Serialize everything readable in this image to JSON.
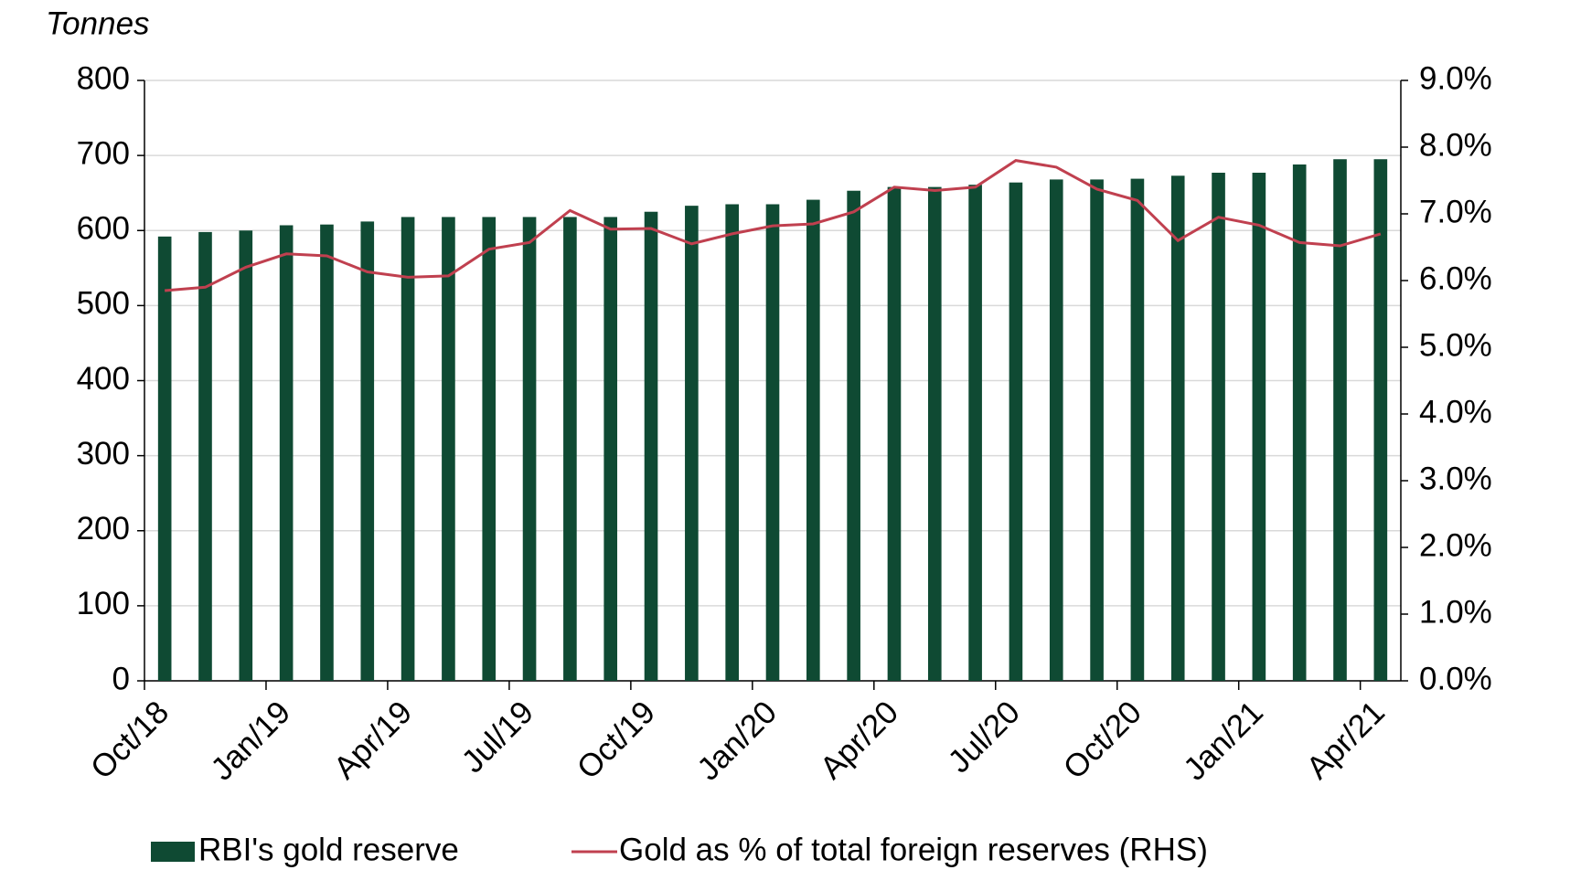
{
  "chart_data": {
    "type": "combo",
    "y_label": "Tonnes",
    "categories": [
      "Oct/18",
      null,
      null,
      "Jan/19",
      null,
      null,
      "Apr/19",
      null,
      null,
      "Jul/19",
      null,
      null,
      "Oct/19",
      null,
      null,
      "Jan/20",
      null,
      null,
      "Apr/20",
      null,
      null,
      "Jul/20",
      null,
      null,
      "Oct/20",
      null,
      null,
      "Jan/21",
      null,
      null,
      "Apr/21"
    ],
    "series": [
      {
        "name": "RBI's gold reserve",
        "type": "bar",
        "color": "#0f4a33",
        "values": [
          592,
          598,
          600,
          607,
          608,
          612,
          618,
          618,
          618,
          618,
          618,
          618,
          625,
          633,
          635,
          635,
          641,
          653,
          658,
          658,
          661,
          664,
          668,
          668,
          669,
          673,
          677,
          677,
          688,
          695,
          695
        ]
      },
      {
        "name": "Gold as % of total foreign reserves (RHS)",
        "type": "line",
        "color": "#c0404f",
        "axis": "y2",
        "values": [
          5.85,
          5.9,
          6.2,
          6.4,
          6.37,
          6.13,
          6.05,
          6.07,
          6.47,
          6.57,
          7.05,
          6.77,
          6.78,
          6.55,
          6.7,
          6.82,
          6.85,
          7.03,
          7.4,
          7.35,
          7.4,
          7.8,
          7.7,
          7.37,
          7.2,
          6.6,
          6.95,
          6.83,
          6.57,
          6.52,
          6.7
        ]
      }
    ],
    "ylim": [
      0,
      800
    ],
    "yticks": [
      0,
      100,
      200,
      300,
      400,
      500,
      600,
      700,
      800
    ],
    "y2lim": [
      0,
      9
    ],
    "y2ticks": [
      {
        "value": 0,
        "label": "0.0%"
      },
      {
        "value": 1,
        "label": "1.0%"
      },
      {
        "value": 2,
        "label": "2.0%"
      },
      {
        "value": 3,
        "label": "3.0%"
      },
      {
        "value": 4,
        "label": "4.0%"
      },
      {
        "value": 5,
        "label": "5.0%"
      },
      {
        "value": 6,
        "label": "6.0%"
      },
      {
        "value": 7,
        "label": "7.0%"
      },
      {
        "value": 8,
        "label": "8.0%"
      },
      {
        "value": 9,
        "label": "9.0%"
      }
    ],
    "grid": true,
    "legend": "bottom"
  }
}
